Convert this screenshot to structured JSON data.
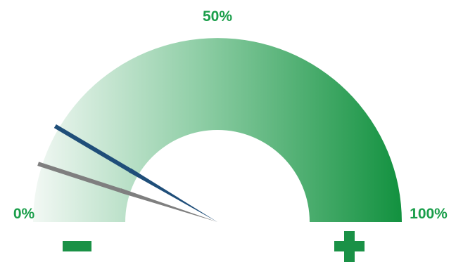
{
  "chart_data": {
    "type": "gauge",
    "min": 0,
    "max": 100,
    "tick_labels": [
      "0%",
      "50%",
      "100%"
    ],
    "end_symbols": {
      "low": "minus",
      "high": "plus"
    },
    "needles": [
      {
        "color": "#1f4e79",
        "value": 17
      },
      {
        "color": "#7f7f7f",
        "value": 10
      }
    ]
  },
  "colors": {
    "label": "#1a9e4a",
    "symbol": "#1a9146",
    "band_light": "#f2f8f4",
    "band_mid": "#8fcea6",
    "band_dark": "#12913f"
  }
}
